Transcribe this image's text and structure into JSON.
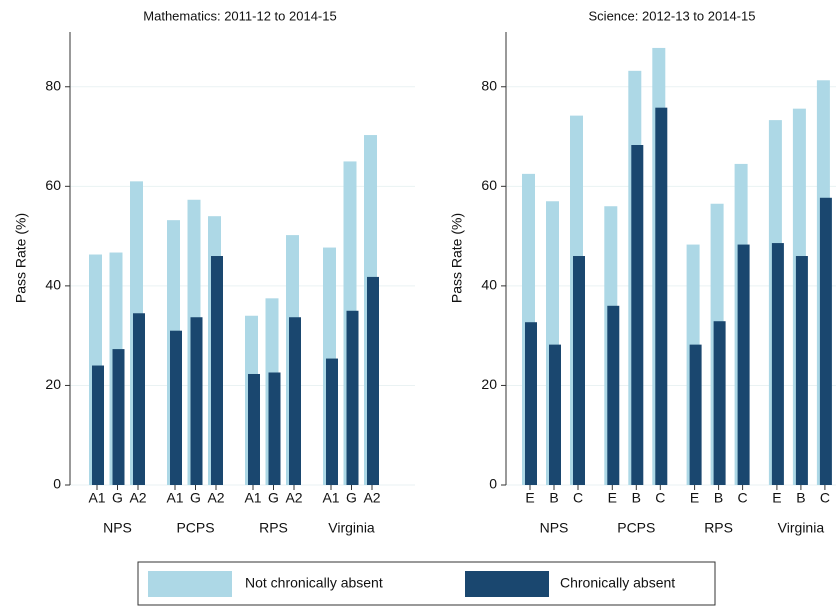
{
  "chart_data": [
    {
      "type": "bar",
      "title": "Mathematics: 2011-12 to 2014-15",
      "y_label": "Pass Rate (%)",
      "groups": [
        "NPS",
        "PCPS",
        "RPS",
        "Virginia"
      ],
      "categories": [
        "A1",
        "G",
        "A2",
        "A1",
        "G",
        "A2",
        "A1",
        "G",
        "A2",
        "A1",
        "G",
        "A2"
      ],
      "series": [
        {
          "name": "Not chronically absent",
          "color": "#add8e6",
          "values": [
            46.3,
            46.7,
            61,
            53.2,
            57.3,
            54,
            34,
            37.5,
            50.2,
            47.7,
            65,
            70.3
          ]
        },
        {
          "name": "Chronically absent",
          "color": "#1a476f",
          "values": [
            24,
            27.3,
            34.5,
            31,
            33.7,
            46,
            22.3,
            22.6,
            33.7,
            25.4,
            35,
            41.8
          ]
        }
      ],
      "ylim": [
        0,
        91
      ],
      "yticks": [
        0,
        20,
        40,
        60,
        80
      ],
      "grid": true
    },
    {
      "type": "bar",
      "title": "Science: 2012-13 to 2014-15",
      "y_label": "Pass Rate (%)",
      "groups": [
        "NPS",
        "PCPS",
        "RPS",
        "Virginia"
      ],
      "categories": [
        "E",
        "B",
        "C",
        "E",
        "B",
        "C",
        "E",
        "B",
        "C",
        "E",
        "B",
        "C"
      ],
      "series": [
        {
          "name": "Not chronically absent",
          "color": "#add8e6",
          "values": [
            62.5,
            57,
            74.2,
            56,
            83.2,
            87.8,
            48.3,
            56.5,
            64.5,
            73.3,
            75.6,
            81.3
          ]
        },
        {
          "name": "Chronically absent",
          "color": "#1a476f",
          "values": [
            32.7,
            28.2,
            46,
            36,
            68.3,
            75.8,
            28.2,
            32.9,
            48.3,
            48.6,
            46,
            57.7
          ]
        }
      ],
      "ylim": [
        0,
        91
      ],
      "yticks": [
        0,
        20,
        40,
        60,
        80
      ],
      "grid": true
    }
  ]
}
